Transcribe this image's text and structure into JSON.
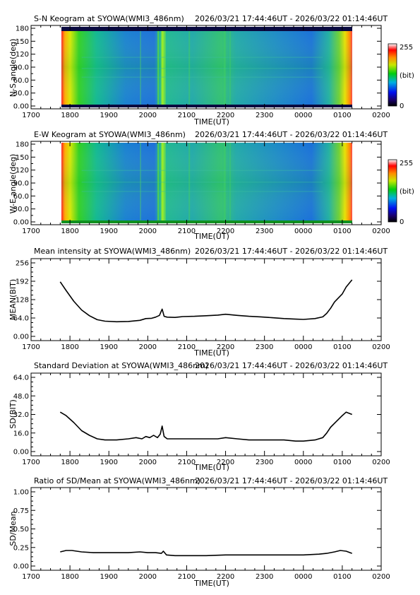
{
  "chart_data": [
    {
      "type": "heatmap",
      "title": "S-N Keogram at SYOWA(WMI3_486nm)",
      "time_range": "2026/03/21 17:44:46UT - 2026/03/22 01:14:46UT",
      "xlabel": "TIME(UT)",
      "ylabel": "N-S angle(deg)",
      "x_ticks": [
        "1700",
        "1800",
        "1900",
        "2000",
        "2100",
        "2200",
        "2300",
        "0000",
        "0100",
        "0200"
      ],
      "y_ticks": [
        "0.00",
        "30.0",
        "60.0",
        "90.0",
        "120",
        "150",
        "180"
      ],
      "ylim": [
        0,
        180
      ],
      "colorbar": {
        "min_label": "0",
        "max_label": "255",
        "unit": "(bit)"
      }
    },
    {
      "type": "heatmap",
      "title": "E-W Keogram at SYOWA(WMI3_486nm)",
      "time_range": "2026/03/21 17:44:46UT - 2026/03/22 01:14:46UT",
      "xlabel": "TIME(UT)",
      "ylabel": "W-E angle(deg)",
      "x_ticks": [
        "1700",
        "1800",
        "1900",
        "2000",
        "2100",
        "2200",
        "2300",
        "0000",
        "0100",
        "0200"
      ],
      "y_ticks": [
        "0.00",
        "30.0",
        "60.0",
        "90.0",
        "120",
        "150",
        "180"
      ],
      "ylim": [
        0,
        180
      ],
      "colorbar": {
        "min_label": "0",
        "max_label": "255",
        "unit": "(bit)"
      }
    },
    {
      "type": "line",
      "title": "Mean intensity at SYOWA(WMI3_486nm)",
      "time_range": "2026/03/21 17:44:46UT - 2026/03/22 01:14:46UT",
      "xlabel": "TIME(UT)",
      "ylabel": "MEAN(BIT)",
      "x_ticks": [
        "1700",
        "1800",
        "1900",
        "2000",
        "2100",
        "2200",
        "2300",
        "0000",
        "0100",
        "0200"
      ],
      "y_ticks": [
        "0.00",
        "64.0",
        "128",
        "192",
        "256"
      ],
      "ylim": [
        0,
        256
      ],
      "x_hours": [
        17.75,
        17.9,
        18.1,
        18.3,
        18.5,
        18.7,
        18.9,
        19.2,
        19.5,
        19.8,
        19.95,
        20.1,
        20.2,
        20.3,
        20.37,
        20.42,
        20.5,
        20.7,
        20.9,
        21.2,
        21.5,
        21.8,
        22.0,
        22.3,
        22.6,
        22.9,
        23.2,
        23.5,
        23.8,
        24.0,
        24.3,
        24.5,
        24.6,
        24.7,
        24.8,
        25.0,
        25.1,
        25.25
      ],
      "values": [
        190,
        160,
        122,
        92,
        72,
        58,
        53,
        51,
        52,
        56,
        62,
        63,
        67,
        73,
        95,
        70,
        67,
        66,
        69,
        70,
        72,
        74,
        77,
        73,
        70,
        68,
        65,
        62,
        60,
        59,
        62,
        68,
        80,
        98,
        120,
        148,
        172,
        197
      ]
    },
    {
      "type": "line",
      "title": "Standard Deviation at SYOWA(WMI3_486nm)",
      "time_range": "2026/03/21 17:44:46UT - 2026/03/22 01:14:46UT",
      "xlabel": "TIME(UT)",
      "ylabel": "SD(BIT)",
      "x_ticks": [
        "1700",
        "1800",
        "1900",
        "2000",
        "2100",
        "2200",
        "2300",
        "0000",
        "0100",
        "0200"
      ],
      "y_ticks": [
        "0.00",
        "16.0",
        "32.0",
        "48.0",
        "64.0"
      ],
      "ylim": [
        0,
        64
      ],
      "x_hours": [
        17.75,
        17.9,
        18.1,
        18.3,
        18.5,
        18.7,
        18.9,
        19.2,
        19.5,
        19.7,
        19.85,
        19.95,
        20.05,
        20.15,
        20.25,
        20.32,
        20.37,
        20.42,
        20.5,
        20.7,
        21.0,
        21.5,
        21.8,
        22.0,
        22.3,
        22.6,
        22.9,
        23.2,
        23.5,
        23.8,
        24.0,
        24.3,
        24.5,
        24.6,
        24.7,
        24.85,
        25.0,
        25.1,
        25.25
      ],
      "values": [
        34,
        31,
        25,
        18,
        14,
        11,
        10,
        10,
        11,
        12,
        11,
        13,
        12,
        14,
        12,
        15,
        22,
        13,
        11,
        11,
        11,
        11,
        11,
        12,
        11,
        10,
        10,
        10,
        10,
        9,
        9,
        10,
        12,
        16,
        21,
        26,
        31,
        34,
        32
      ]
    },
    {
      "type": "line",
      "title": "Ratio of SD/Mean at SYOWA(WMI3_486nm)",
      "time_range": "2026/03/21 17:44:46UT - 2026/03/22 01:14:46UT",
      "xlabel": "TIME(UT)",
      "ylabel": "SD/Mean",
      "x_ticks": [
        "1700",
        "1800",
        "1900",
        "2000",
        "2100",
        "2200",
        "2300",
        "0000",
        "0100",
        "0200"
      ],
      "y_ticks": [
        "0.00",
        "0.25",
        "0.50",
        "0.75",
        "1.00"
      ],
      "ylim": [
        0,
        1
      ],
      "x_hours": [
        17.75,
        17.9,
        18.05,
        18.3,
        18.6,
        18.9,
        19.2,
        19.5,
        19.8,
        20.0,
        20.2,
        20.35,
        20.4,
        20.48,
        20.7,
        21.0,
        21.5,
        22.0,
        22.5,
        23.0,
        23.5,
        24.0,
        24.4,
        24.6,
        24.8,
        24.95,
        25.1,
        25.25
      ],
      "values": [
        0.19,
        0.21,
        0.21,
        0.19,
        0.18,
        0.18,
        0.18,
        0.18,
        0.19,
        0.18,
        0.18,
        0.17,
        0.2,
        0.15,
        0.14,
        0.14,
        0.14,
        0.15,
        0.15,
        0.15,
        0.15,
        0.15,
        0.16,
        0.17,
        0.19,
        0.21,
        0.2,
        0.17
      ]
    }
  ]
}
